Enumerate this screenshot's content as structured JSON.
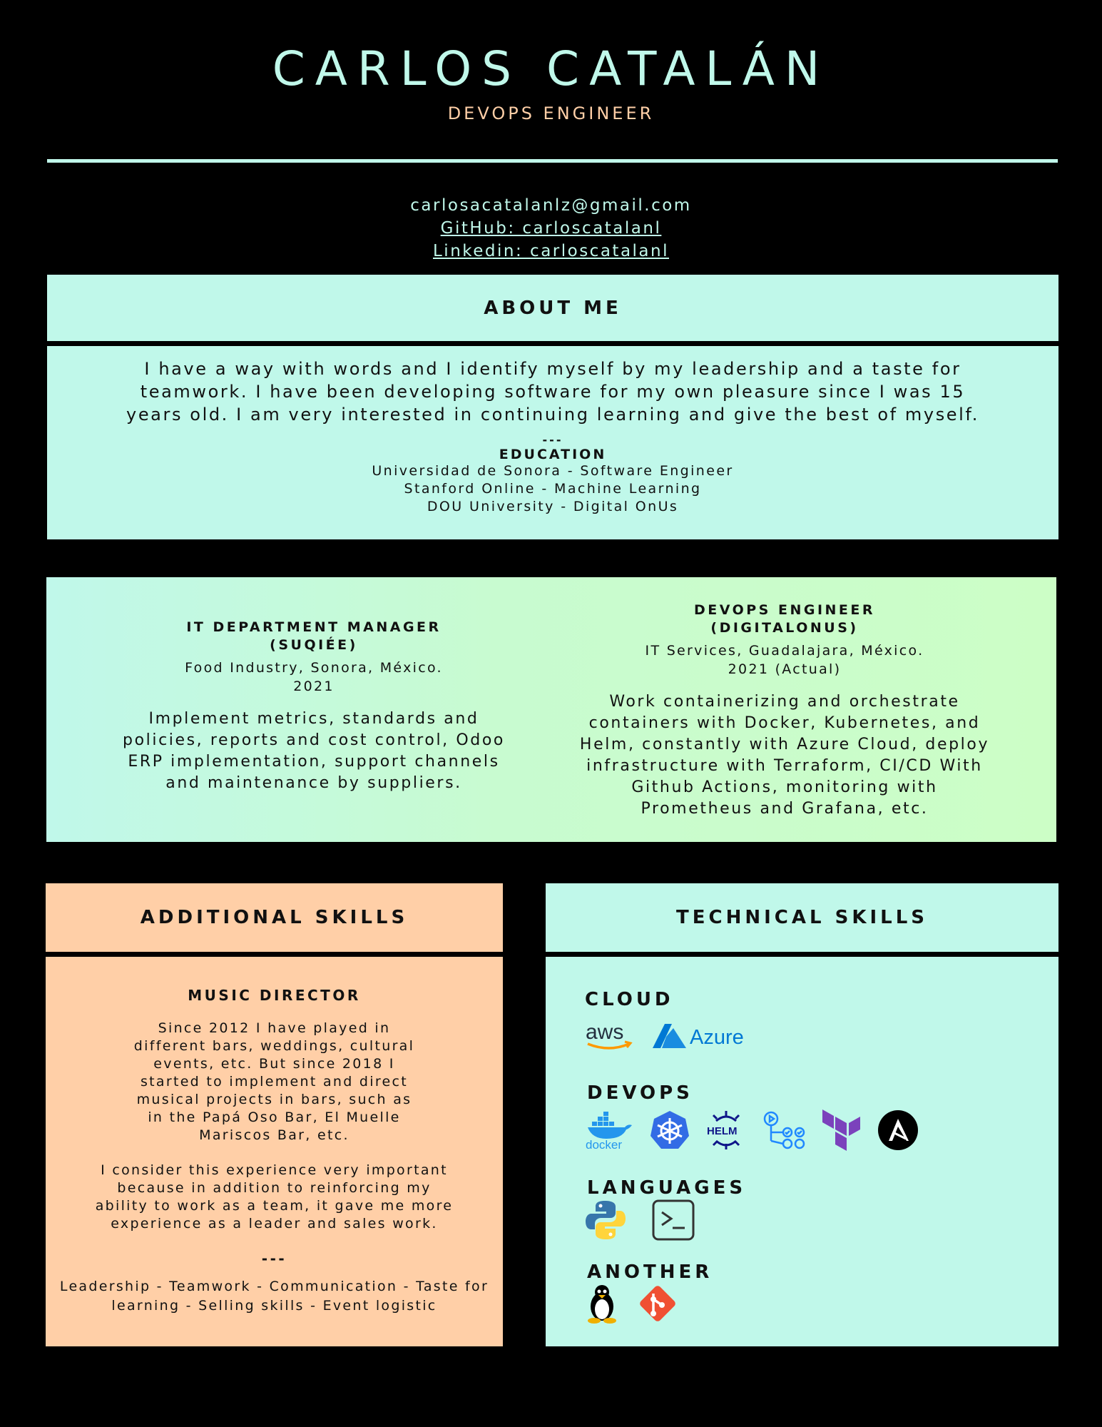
{
  "header": {
    "name": "CARLOS CATALÁN",
    "role": "DEVOPS ENGINEER"
  },
  "contact": {
    "email": "carlosacatalanlz@gmail.com",
    "github": "GitHub: carloscatalanl",
    "linkedin": "Linkedin: carloscatalanl"
  },
  "about": {
    "title": "ABOUT ME",
    "text": "I have a way with words and I identify myself by my leadership and a taste for teamwork. I have been developing software for my own pleasure since I was 15 years old. I am very interested in continuing learning and give the best of myself.",
    "separator": "---",
    "education_title": "EDUCATION",
    "education": [
      "Universidad de Sonora - Software Engineer",
      "Stanford Online - Machine Learning",
      "DOU University - Digital OnUs"
    ]
  },
  "experience": [
    {
      "title": "IT DEPARTMENT MANAGER",
      "company": "(SUQIÉE)",
      "location": "Food Industry, Sonora, México.",
      "year": "2021",
      "description": "Implement metrics, standards and policies, reports and cost control, Odoo ERP implementation, support channels and maintenance by suppliers."
    },
    {
      "title": "DEVOPS ENGINEER",
      "company": "(DIGITALONUS)",
      "location": "IT Services, Guadalajara, México.",
      "year": "2021 (Actual)",
      "description": "Work containerizing and orchestrate containers with Docker, Kubernetes, and Helm, constantly with Azure Cloud, deploy infrastructure with Terraform, CI/CD With Github Actions, monitoring with Prometheus and Grafana, etc."
    }
  ],
  "additional": {
    "title": "ADDITIONAL SKILLS",
    "subtitle": "MUSIC DIRECTOR",
    "paragraph1": "Since 2012 I have played in different bars, weddings, cultural events, etc. But since 2018 I started to implement and direct musical projects in bars, such as in the Papá Oso Bar, El Muelle Mariscos Bar, etc.",
    "paragraph2": "I consider this experience very important because in addition to reinforcing my ability to work as a team, it gave me more experience as a leader and sales work.",
    "separator": "---",
    "skills_line1": "Leadership - Teamwork - Communication - Taste for",
    "skills_line2": "learning - Selling skills - Event logistic"
  },
  "technical": {
    "title": "TECHNICAL SKILLS",
    "categories": [
      {
        "name": "CLOUD",
        "icons": [
          "aws-icon",
          "azure-icon"
        ],
        "labels": [
          "aws",
          "Azure"
        ]
      },
      {
        "name": "DEVOPS",
        "icons": [
          "docker-icon",
          "kubernetes-icon",
          "helm-icon",
          "github-actions-icon",
          "terraform-icon",
          "ansible-icon"
        ],
        "labels": [
          "docker",
          "HELM"
        ]
      },
      {
        "name": "LANGUAGES",
        "icons": [
          "python-icon",
          "terminal-icon"
        ]
      },
      {
        "name": "ANOTHER",
        "icons": [
          "linux-icon",
          "git-icon"
        ]
      }
    ]
  },
  "colors": {
    "background": "#000000",
    "mint": "#c0f8ea",
    "green": "#ccfec6",
    "peach": "#ffcfa7"
  }
}
